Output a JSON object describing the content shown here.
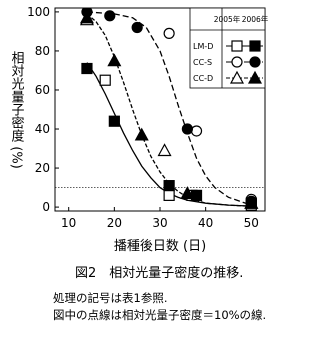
{
  "chart_data": {
    "type": "scatter",
    "y_label": "相対光量子密度 (%)",
    "x_label": "播種後日数 (日)",
    "caption": "図2　相対光量子密度の推移.",
    "notes": [
      "処理の記号は表1参照.",
      "図中の点線は相対光量子密度＝10%の線."
    ],
    "xlim": [
      7,
      53
    ],
    "xticks": [
      10,
      20,
      30,
      40,
      50
    ],
    "ylim": [
      -2,
      102
    ],
    "yticks": [
      0,
      20,
      40,
      60,
      80,
      100
    ],
    "reference_line": 10,
    "legend_columns": [
      "2005年",
      "2006年"
    ],
    "treatments": [
      {
        "name": "LM-D",
        "marker": "square",
        "curve_style": "solid",
        "open": {
          "x": [
            18,
            32,
            37,
            50
          ],
          "values": [
            65,
            6,
            6,
            1
          ]
        },
        "filled": {
          "x": [
            14,
            20,
            32,
            38,
            50
          ],
          "values": [
            71,
            44,
            11,
            6,
            2
          ]
        },
        "curve": {
          "x": [
            14,
            16,
            18,
            20,
            22,
            24,
            26,
            28,
            30,
            32,
            34,
            36,
            40,
            45,
            50
          ],
          "values": [
            74,
            67,
            58,
            48,
            38,
            29,
            21,
            15,
            10,
            7,
            5,
            3.5,
            2,
            1,
            0.5
          ]
        }
      },
      {
        "name": "CC-S",
        "marker": "circle",
        "curve_style": "dashed",
        "open": {
          "x": [
            32,
            38,
            50
          ],
          "values": [
            89,
            39,
            4
          ]
        },
        "filled": {
          "x": [
            14,
            19,
            25,
            36,
            50
          ],
          "values": [
            100,
            98,
            92,
            40,
            3
          ]
        },
        "curve": {
          "x": [
            14,
            20,
            24,
            27,
            30,
            32,
            34,
            36,
            38,
            40,
            42,
            45,
            50
          ],
          "values": [
            100,
            99,
            97,
            92,
            80,
            67,
            52,
            38,
            25,
            16,
            10,
            5,
            1
          ]
        }
      },
      {
        "name": "CC-D",
        "marker": "triangle",
        "curve_style": "dashdot",
        "open": {
          "x": [
            14,
            31,
            50
          ],
          "values": [
            96,
            29,
            2
          ]
        },
        "filled": {
          "x": [
            14,
            20,
            26,
            36,
            50
          ],
          "values": [
            97,
            75,
            37,
            7,
            2
          ]
        },
        "curve": {
          "x": [
            13,
            16,
            18,
            20,
            22,
            24,
            26,
            28,
            30,
            32,
            34,
            36,
            40,
            45,
            50
          ],
          "values": [
            101,
            95,
            88,
            77,
            64,
            50,
            37,
            26,
            18,
            12,
            8,
            5,
            2,
            1,
            0.4
          ]
        }
      }
    ]
  }
}
